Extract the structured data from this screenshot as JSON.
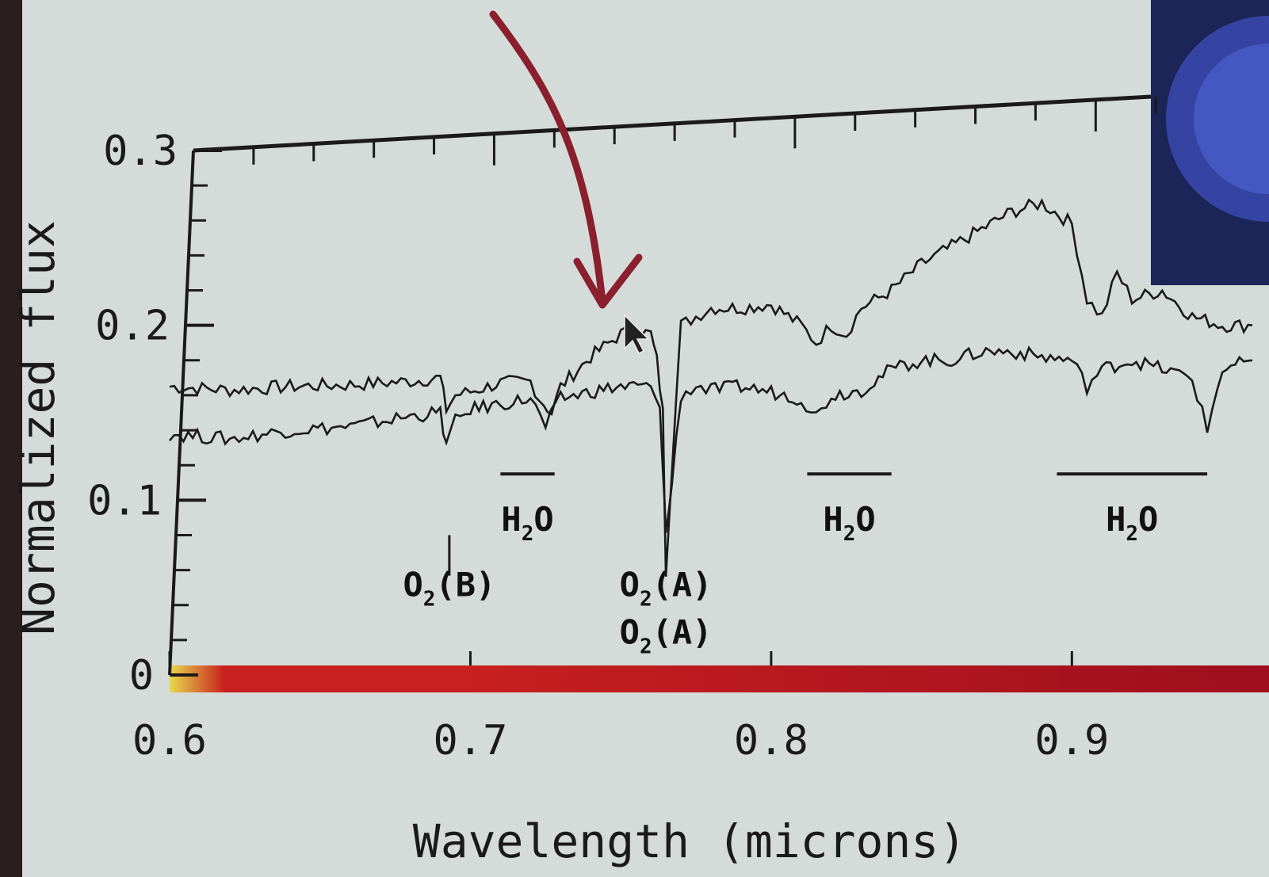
{
  "chart_data": {
    "type": "line",
    "title": "",
    "xlabel": "Wavelength (microns)",
    "ylabel": "Normalized flux",
    "xlim": [
      0.6,
      0.96
    ],
    "ylim": [
      0,
      0.3
    ],
    "xticks": [
      0.6,
      0.7,
      0.8,
      0.9
    ],
    "xtick_labels": [
      "0.6",
      "0.7",
      "0.8",
      "0.9"
    ],
    "yticks": [
      0,
      0.1,
      0.2,
      0.3
    ],
    "ytick_labels": [
      "0",
      "0.1",
      "0.2",
      "0.3"
    ],
    "grid": false,
    "series": [
      {
        "x": [
          0.6,
          0.62,
          0.64,
          0.66,
          0.68,
          0.69,
          0.692,
          0.695,
          0.7,
          0.71,
          0.72,
          0.723,
          0.727,
          0.73,
          0.74,
          0.75,
          0.755,
          0.76,
          0.762,
          0.764,
          0.765,
          0.767,
          0.77,
          0.775,
          0.78,
          0.79,
          0.8,
          0.81,
          0.815,
          0.82,
          0.825,
          0.83,
          0.84,
          0.85,
          0.86,
          0.87,
          0.88,
          0.89,
          0.9,
          0.905,
          0.91,
          0.915,
          0.92,
          0.93,
          0.94,
          0.95,
          0.96
        ],
        "y": [
          0.165,
          0.163,
          0.165,
          0.166,
          0.168,
          0.17,
          0.152,
          0.16,
          0.162,
          0.167,
          0.168,
          0.158,
          0.15,
          0.165,
          0.182,
          0.195,
          0.197,
          0.195,
          0.18,
          0.15,
          0.06,
          0.12,
          0.2,
          0.205,
          0.21,
          0.21,
          0.212,
          0.2,
          0.19,
          0.2,
          0.195,
          0.21,
          0.22,
          0.235,
          0.245,
          0.255,
          0.265,
          0.27,
          0.258,
          0.215,
          0.205,
          0.23,
          0.215,
          0.22,
          0.205,
          0.2,
          0.2
        ]
      },
      {
        "x": [
          0.6,
          0.62,
          0.64,
          0.66,
          0.68,
          0.69,
          0.692,
          0.695,
          0.7,
          0.71,
          0.72,
          0.725,
          0.73,
          0.74,
          0.75,
          0.76,
          0.763,
          0.764,
          0.765,
          0.767,
          0.77,
          0.775,
          0.78,
          0.79,
          0.8,
          0.81,
          0.815,
          0.82,
          0.83,
          0.84,
          0.85,
          0.86,
          0.87,
          0.88,
          0.89,
          0.9,
          0.905,
          0.91,
          0.92,
          0.93,
          0.94,
          0.945,
          0.95,
          0.96
        ],
        "y": [
          0.138,
          0.135,
          0.14,
          0.142,
          0.148,
          0.15,
          0.132,
          0.145,
          0.152,
          0.155,
          0.158,
          0.142,
          0.158,
          0.162,
          0.165,
          0.165,
          0.15,
          0.12,
          0.08,
          0.11,
          0.16,
          0.165,
          0.163,
          0.165,
          0.162,
          0.158,
          0.148,
          0.16,
          0.163,
          0.175,
          0.18,
          0.18,
          0.185,
          0.185,
          0.182,
          0.18,
          0.165,
          0.175,
          0.18,
          0.175,
          0.17,
          0.14,
          0.175,
          0.18
        ]
      }
    ],
    "annotations": [
      {
        "label_main": "O",
        "label_sub": "2",
        "label_tail": "(B)",
        "x": 0.693,
        "y": 0.045,
        "marker_from": 0.08,
        "marker_to": 0.065
      },
      {
        "label_main": "O",
        "label_sub": "2",
        "label_tail": "(A)",
        "x": 0.765,
        "y": 0.045
      },
      {
        "label_main": "O",
        "label_sub": "2",
        "label_tail": "(A)",
        "x": 0.765,
        "y": 0.018
      }
    ],
    "bands": [
      {
        "label_main": "H",
        "label_sub": "2",
        "label_tail": "O",
        "x0": 0.71,
        "x1": 0.728,
        "y": 0.115
      },
      {
        "label_main": "H",
        "label_sub": "2",
        "label_tail": "O",
        "x0": 0.812,
        "x1": 0.84,
        "y": 0.115
      },
      {
        "label_main": "H",
        "label_sub": "2",
        "label_tail": "O",
        "x0": 0.895,
        "x1": 0.945,
        "y": 0.115
      }
    ],
    "colors": {
      "line": "#1a1a1a",
      "arrow": "#8a1f2e",
      "bar_start": "#e8d84a",
      "bar_mid": "#c8201e",
      "bar_end": "#9e0e1e",
      "screen_inset": "#1f2a5a",
      "background": "#d5dbd8"
    }
  }
}
